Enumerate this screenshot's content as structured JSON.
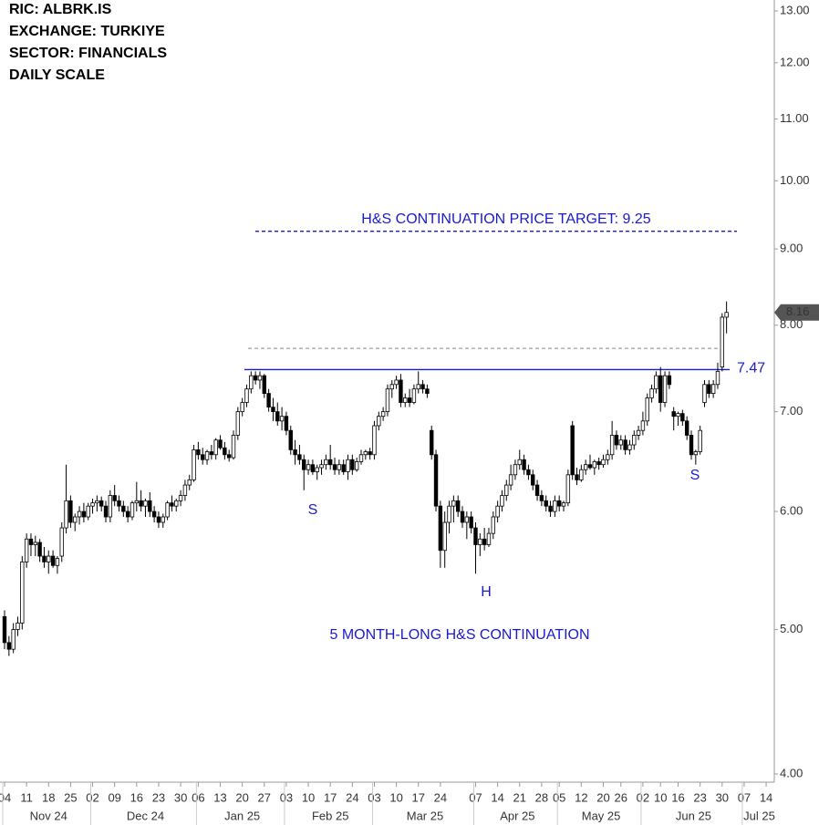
{
  "chart_data": {
    "type": "candlestick",
    "header": [
      "RIC:  ALBRK.IS",
      "EXCHANGE: TURKIYE",
      "SECTOR:  FINANCIALS",
      "DAILY SCALE"
    ],
    "log_scale": true,
    "ylim": [
      4,
      13
    ],
    "yticks": [
      {
        "value": 4,
        "label": "4.00"
      },
      {
        "value": 5,
        "label": "5.00"
      },
      {
        "value": 6,
        "label": "6.00"
      },
      {
        "value": 7,
        "label": "7.00"
      },
      {
        "value": 8,
        "label": "8.00"
      },
      {
        "value": 9,
        "label": "9.00"
      },
      {
        "value": 10,
        "label": "10.00"
      },
      {
        "value": 11,
        "label": "11.00"
      },
      {
        "value": 12,
        "label": "12.00"
      },
      {
        "value": 13,
        "label": "13.00"
      }
    ],
    "months": [
      "Nov 24",
      "Dec 24",
      "Jan 25",
      "Feb 25",
      "Mar 25",
      "Apr 25",
      "May 25",
      "Jun 25",
      "Jul 25"
    ],
    "categories": [
      "04",
      null,
      null,
      null,
      null,
      "11",
      null,
      null,
      null,
      null,
      "18",
      null,
      null,
      null,
      null,
      "25",
      null,
      null,
      null,
      null,
      "02",
      null,
      null,
      null,
      null,
      "09",
      null,
      null,
      null,
      null,
      "16",
      null,
      null,
      null,
      null,
      "23",
      null,
      null,
      null,
      null,
      "30",
      null,
      null,
      null,
      "06",
      null,
      null,
      null,
      null,
      "13",
      null,
      null,
      null,
      null,
      "20",
      null,
      null,
      null,
      null,
      "27",
      null,
      null,
      null,
      null,
      "03",
      null,
      null,
      null,
      null,
      "10",
      null,
      null,
      null,
      null,
      "17",
      null,
      null,
      null,
      null,
      "24",
      null,
      null,
      null,
      null,
      "03",
      null,
      null,
      null,
      null,
      "10",
      null,
      null,
      null,
      null,
      "17",
      null,
      null,
      null,
      null,
      "24",
      null,
      null,
      null,
      null,
      null,
      null,
      null,
      "07",
      null,
      null,
      null,
      null,
      "14",
      null,
      null,
      null,
      null,
      "21",
      null,
      null,
      null,
      null,
      "28",
      null,
      null,
      null,
      "05",
      null,
      null,
      null,
      null,
      "12",
      null,
      null,
      null,
      null,
      "20",
      null,
      null,
      null,
      "26",
      null,
      null,
      null,
      null,
      "02",
      null,
      null,
      null,
      "10",
      null,
      null,
      null,
      "16",
      null,
      null,
      null,
      null,
      "23",
      null,
      null,
      null,
      null,
      "30",
      null,
      null,
      null,
      null,
      "07",
      null,
      null,
      null,
      null,
      "14",
      null
    ],
    "ohlc": [
      [
        5.1,
        5.15,
        4.85,
        4.9
      ],
      [
        4.9,
        4.95,
        4.8,
        4.85
      ],
      [
        4.85,
        5.05,
        4.82,
        5.0
      ],
      [
        5.0,
        5.1,
        4.95,
        5.05
      ],
      [
        5.05,
        5.6,
        5.0,
        5.55
      ],
      [
        5.55,
        5.8,
        5.5,
        5.75
      ],
      [
        5.75,
        5.8,
        5.6,
        5.7
      ],
      [
        5.7,
        5.78,
        5.6,
        5.72
      ],
      [
        5.72,
        5.75,
        5.55,
        5.6
      ],
      [
        5.6,
        5.68,
        5.5,
        5.55
      ],
      [
        5.55,
        5.65,
        5.45,
        5.6
      ],
      [
        5.6,
        5.65,
        5.5,
        5.52
      ],
      [
        5.52,
        5.6,
        5.45,
        5.58
      ],
      [
        5.6,
        5.9,
        5.55,
        5.85
      ],
      [
        5.85,
        6.45,
        5.8,
        6.1
      ],
      [
        6.1,
        6.15,
        5.85,
        5.9
      ],
      [
        5.9,
        5.98,
        5.82,
        5.95
      ],
      [
        5.95,
        6.05,
        5.88,
        6.0
      ],
      [
        6.0,
        6.08,
        5.9,
        5.95
      ],
      [
        5.95,
        6.08,
        5.92,
        6.05
      ],
      [
        6.05,
        6.12,
        5.98,
        6.08
      ],
      [
        6.08,
        6.15,
        6.0,
        6.1
      ],
      [
        6.1,
        6.14,
        6.0,
        6.05
      ],
      [
        6.05,
        6.1,
        5.9,
        5.95
      ],
      [
        5.95,
        6.2,
        5.9,
        6.15
      ],
      [
        6.15,
        6.25,
        6.05,
        6.1
      ],
      [
        6.1,
        6.15,
        6.0,
        6.05
      ],
      [
        6.05,
        6.1,
        5.95,
        6.0
      ],
      [
        6.0,
        6.05,
        5.9,
        5.95
      ],
      [
        5.95,
        6.1,
        5.92,
        6.08
      ],
      [
        6.08,
        6.28,
        6.0,
        6.1
      ],
      [
        6.1,
        6.2,
        6.0,
        6.05
      ],
      [
        6.05,
        6.12,
        5.95,
        6.1
      ],
      [
        6.1,
        6.18,
        5.95,
        6.0
      ],
      [
        6.0,
        6.05,
        5.9,
        5.95
      ],
      [
        5.95,
        6.0,
        5.85,
        5.9
      ],
      [
        5.9,
        5.98,
        5.85,
        5.95
      ],
      [
        5.95,
        6.1,
        5.92,
        6.08
      ],
      [
        6.08,
        6.15,
        6.0,
        6.05
      ],
      [
        6.05,
        6.12,
        6.0,
        6.1
      ],
      [
        6.1,
        6.2,
        6.05,
        6.15
      ],
      [
        6.15,
        6.3,
        6.1,
        6.25
      ],
      [
        6.25,
        6.35,
        6.2,
        6.3
      ],
      [
        6.3,
        6.65,
        6.28,
        6.6
      ],
      [
        6.6,
        6.68,
        6.5,
        6.55
      ],
      [
        6.55,
        6.62,
        6.45,
        6.5
      ],
      [
        6.5,
        6.6,
        6.45,
        6.58
      ],
      [
        6.58,
        6.65,
        6.5,
        6.55
      ],
      [
        6.55,
        6.72,
        6.5,
        6.7
      ],
      [
        6.7,
        6.75,
        6.6,
        6.62
      ],
      [
        6.62,
        6.68,
        6.5,
        6.55
      ],
      [
        6.55,
        6.6,
        6.48,
        6.52
      ],
      [
        6.52,
        6.8,
        6.5,
        6.75
      ],
      [
        6.75,
        7.05,
        6.7,
        7.0
      ],
      [
        7.0,
        7.15,
        6.95,
        7.1
      ],
      [
        7.1,
        7.3,
        7.05,
        7.25
      ],
      [
        7.25,
        7.45,
        7.2,
        7.4
      ],
      [
        7.4,
        7.45,
        7.3,
        7.35
      ],
      [
        7.35,
        7.45,
        7.25,
        7.4
      ],
      [
        7.4,
        7.42,
        7.15,
        7.2
      ],
      [
        7.2,
        7.25,
        7.0,
        7.05
      ],
      [
        7.05,
        7.15,
        6.9,
        7.0
      ],
      [
        7.0,
        7.1,
        6.85,
        6.9
      ],
      [
        6.9,
        7.05,
        6.8,
        6.95
      ],
      [
        6.95,
        7.0,
        6.75,
        6.8
      ],
      [
        6.8,
        6.85,
        6.55,
        6.6
      ],
      [
        6.6,
        6.7,
        6.45,
        6.55
      ],
      [
        6.55,
        6.65,
        6.45,
        6.5
      ],
      [
        6.5,
        6.55,
        6.2,
        6.4
      ],
      [
        6.4,
        6.5,
        6.35,
        6.45
      ],
      [
        6.45,
        6.5,
        6.35,
        6.38
      ],
      [
        6.38,
        6.45,
        6.3,
        6.42
      ],
      [
        6.42,
        6.5,
        6.35,
        6.45
      ],
      [
        6.45,
        6.55,
        6.4,
        6.5
      ],
      [
        6.5,
        6.65,
        6.4,
        6.45
      ],
      [
        6.45,
        6.52,
        6.35,
        6.4
      ],
      [
        6.4,
        6.5,
        6.35,
        6.45
      ],
      [
        6.45,
        6.5,
        6.35,
        6.38
      ],
      [
        6.38,
        6.55,
        6.3,
        6.5
      ],
      [
        6.5,
        6.55,
        6.35,
        6.4
      ],
      [
        6.4,
        6.52,
        6.38,
        6.48
      ],
      [
        6.48,
        6.6,
        6.45,
        6.55
      ],
      [
        6.55,
        6.6,
        6.5,
        6.58
      ],
      [
        6.58,
        6.62,
        6.5,
        6.55
      ],
      [
        6.55,
        6.9,
        6.5,
        6.85
      ],
      [
        6.85,
        7.0,
        6.8,
        6.95
      ],
      [
        6.95,
        7.05,
        6.9,
        7.0
      ],
      [
        7.0,
        7.3,
        6.95,
        7.25
      ],
      [
        7.25,
        7.35,
        7.15,
        7.3
      ],
      [
        7.3,
        7.4,
        7.25,
        7.35
      ],
      [
        7.35,
        7.42,
        7.05,
        7.1
      ],
      [
        7.1,
        7.2,
        7.05,
        7.15
      ],
      [
        7.15,
        7.25,
        7.05,
        7.1
      ],
      [
        7.1,
        7.3,
        7.08,
        7.25
      ],
      [
        7.25,
        7.45,
        7.2,
        7.3
      ],
      [
        7.3,
        7.35,
        7.2,
        7.25
      ],
      [
        7.25,
        7.3,
        7.15,
        7.2
      ],
      [
        6.8,
        6.85,
        6.5,
        6.55
      ],
      [
        6.55,
        6.6,
        6.0,
        6.05
      ],
      [
        6.05,
        6.1,
        5.5,
        5.65
      ],
      [
        5.65,
        6.0,
        5.5,
        5.9
      ],
      [
        5.9,
        6.1,
        5.8,
        6.05
      ],
      [
        6.05,
        6.15,
        5.9,
        6.1
      ],
      [
        6.1,
        6.15,
        5.95,
        6.0
      ],
      [
        6.0,
        6.05,
        5.85,
        5.9
      ],
      [
        5.9,
        6.0,
        5.75,
        5.95
      ],
      [
        5.95,
        6.0,
        5.8,
        5.85
      ],
      [
        5.85,
        5.9,
        5.45,
        5.7
      ],
      [
        5.7,
        5.8,
        5.6,
        5.75
      ],
      [
        5.75,
        5.85,
        5.65,
        5.7
      ],
      [
        5.7,
        5.85,
        5.68,
        5.8
      ],
      [
        5.8,
        6.0,
        5.75,
        5.95
      ],
      [
        5.95,
        6.1,
        5.9,
        6.05
      ],
      [
        6.05,
        6.2,
        6.0,
        6.15
      ],
      [
        6.15,
        6.3,
        6.1,
        6.25
      ],
      [
        6.25,
        6.45,
        6.2,
        6.35
      ],
      [
        6.35,
        6.5,
        6.3,
        6.45
      ],
      [
        6.45,
        6.6,
        6.4,
        6.5
      ],
      [
        6.5,
        6.55,
        6.35,
        6.4
      ],
      [
        6.4,
        6.45,
        6.3,
        6.35
      ],
      [
        6.35,
        6.4,
        6.2,
        6.25
      ],
      [
        6.25,
        6.3,
        6.1,
        6.15
      ],
      [
        6.15,
        6.2,
        6.05,
        6.1
      ],
      [
        6.1,
        6.15,
        6.0,
        6.05
      ],
      [
        6.05,
        6.1,
        5.95,
        6.0
      ],
      [
        6.0,
        6.15,
        5.95,
        6.1
      ],
      [
        6.1,
        6.15,
        6.0,
        6.05
      ],
      [
        6.05,
        6.1,
        6.0,
        6.08
      ],
      [
        6.08,
        6.4,
        6.05,
        6.35
      ],
      [
        6.85,
        6.9,
        6.3,
        6.35
      ],
      [
        6.35,
        6.42,
        6.25,
        6.3
      ],
      [
        6.3,
        6.45,
        6.28,
        6.4
      ],
      [
        6.4,
        6.5,
        6.35,
        6.45
      ],
      [
        6.45,
        6.55,
        6.4,
        6.42
      ],
      [
        6.42,
        6.5,
        6.35,
        6.48
      ],
      [
        6.48,
        6.52,
        6.4,
        6.45
      ],
      [
        6.45,
        6.55,
        6.42,
        6.5
      ],
      [
        6.5,
        6.6,
        6.45,
        6.55
      ],
      [
        6.55,
        6.9,
        6.5,
        6.75
      ],
      [
        6.75,
        6.8,
        6.6,
        6.65
      ],
      [
        6.65,
        6.75,
        6.6,
        6.7
      ],
      [
        6.7,
        6.75,
        6.55,
        6.6
      ],
      [
        6.6,
        6.7,
        6.55,
        6.65
      ],
      [
        6.65,
        6.8,
        6.6,
        6.75
      ],
      [
        6.75,
        6.85,
        6.7,
        6.8
      ],
      [
        6.8,
        7.0,
        6.75,
        6.9
      ],
      [
        6.9,
        7.2,
        6.85,
        7.15
      ],
      [
        7.15,
        7.3,
        7.1,
        7.25
      ],
      [
        7.25,
        7.45,
        7.2,
        7.4
      ],
      [
        7.4,
        7.5,
        7.0,
        7.1
      ],
      [
        7.1,
        7.45,
        7.05,
        7.4
      ],
      [
        7.4,
        7.45,
        7.25,
        7.3
      ],
      [
        7.0,
        7.05,
        6.8,
        6.95
      ],
      [
        6.95,
        7.0,
        6.85,
        6.98
      ],
      [
        6.98,
        7.02,
        6.85,
        6.9
      ],
      [
        6.9,
        6.95,
        6.7,
        6.75
      ],
      [
        6.75,
        6.8,
        6.5,
        6.55
      ],
      [
        6.55,
        6.6,
        6.45,
        6.58
      ],
      [
        6.58,
        6.85,
        6.55,
        6.8
      ],
      [
        7.1,
        7.35,
        7.05,
        7.3
      ],
      [
        7.3,
        7.35,
        7.15,
        7.2
      ],
      [
        7.2,
        7.35,
        7.15,
        7.3
      ],
      [
        7.3,
        7.55,
        7.25,
        7.45
      ],
      [
        7.5,
        8.15,
        7.45,
        8.1
      ],
      [
        8.1,
        8.3,
        7.9,
        8.16
      ],
      null,
      null,
      null,
      null,
      null,
      null,
      null,
      null,
      null,
      null
    ],
    "last_price_label": "8.16",
    "target": {
      "label": "H&S CONTINUATION PRICE TARGET: 9.25",
      "value": 9.25,
      "color": "#1a1acc"
    },
    "neckline": 7.47,
    "resistance": 7.72,
    "pattern_labels": [
      "S",
      "H",
      "S"
    ],
    "pattern_title": "5 MONTH-LONG H&S CONTINUATION"
  }
}
